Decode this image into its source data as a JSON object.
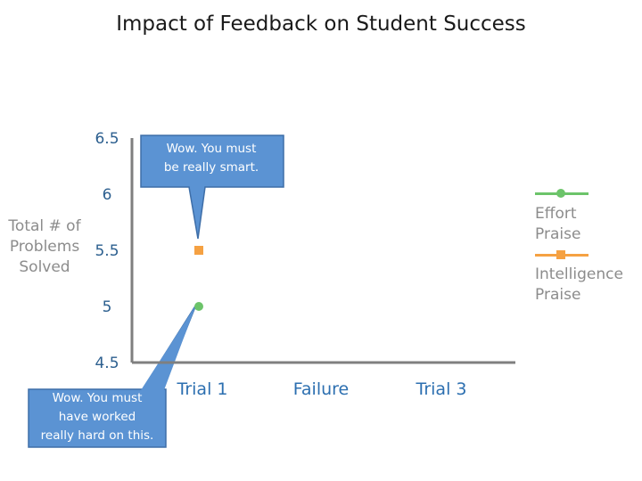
{
  "chart_data": {
    "type": "scatter",
    "title": "Impact of Feedback on Student Success",
    "xlabel": "",
    "ylabel": "Total # of Problems Solved",
    "categories": [
      "Trial 1",
      "Failure",
      "Trial 3"
    ],
    "yticks": [
      "4.5",
      "5",
      "5.5",
      "6",
      "6.5"
    ],
    "ylim": [
      4.5,
      6.5
    ],
    "series": [
      {
        "name": "Effort Praise",
        "color": "#6cc46a",
        "marker": "circle",
        "values": [
          5,
          null,
          null
        ]
      },
      {
        "name": "Intelligence Praise",
        "color": "#f5a142",
        "marker": "square",
        "values": [
          5.5,
          null,
          null
        ]
      }
    ],
    "legend_position": "right",
    "grid": false,
    "annotations": [
      {
        "text_lines": [
          "Wow.  You must",
          "be really smart."
        ],
        "target_series": "Intelligence Praise"
      },
      {
        "text_lines": [
          "Wow.  You must",
          "have worked",
          "really hard on this."
        ],
        "target_series": "Effort Praise"
      }
    ]
  }
}
